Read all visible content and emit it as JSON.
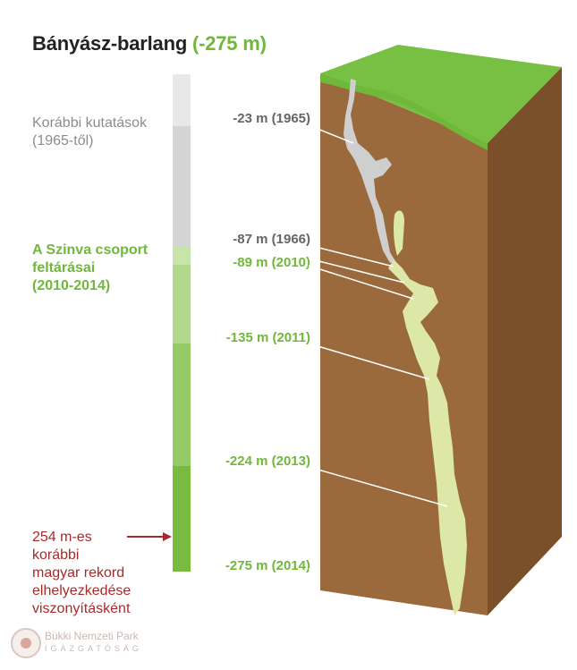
{
  "title": {
    "text": "Bányász-barlang",
    "accent": "(-275 m)"
  },
  "labels": {
    "earlier_research": [
      "Korábbi kutatások",
      "(1965-től)"
    ],
    "szinva_group": [
      "A Szinva csoport",
      "feltárásai",
      "(2010-2014)"
    ],
    "record_note": [
      "254 m-es",
      "korábbi",
      "magyar rekord",
      "elhelyezkedése",
      "viszonyításként"
    ]
  },
  "depths": [
    {
      "text": "-23 m (1965)",
      "depth_m": 23,
      "style": "grey"
    },
    {
      "text": "-87 m (1966)",
      "depth_m": 87,
      "style": "grey"
    },
    {
      "text": "-89 m (2010)",
      "depth_m": 89,
      "style": "green"
    },
    {
      "text": "-135 m (2011)",
      "depth_m": 135,
      "style": "green"
    },
    {
      "text": "-224 m (2013)",
      "depth_m": 224,
      "style": "green"
    },
    {
      "text": "-275 m (2014)",
      "depth_m": 275,
      "style": "green"
    }
  ],
  "record_depth_m": 254,
  "logo": {
    "name": "Bükki Nemzeti Park",
    "sub": "IGAZGATÓSÁG"
  },
  "colors": {
    "grass": "#78c043",
    "soil_front": "#9a6a3c",
    "soil_side": "#7a4f2a",
    "cave": "#dde8a8",
    "cave_upper": "#cfcfcf",
    "arrow": "#a82a2a",
    "scale_grey_light": "#e8e8e8",
    "scale_grey": "#d4d4d4",
    "scale_green_1": "#cfe6b3",
    "scale_green_2": "#b2d88e",
    "scale_green_3": "#95ca67",
    "scale_green_4": "#78bb40"
  }
}
